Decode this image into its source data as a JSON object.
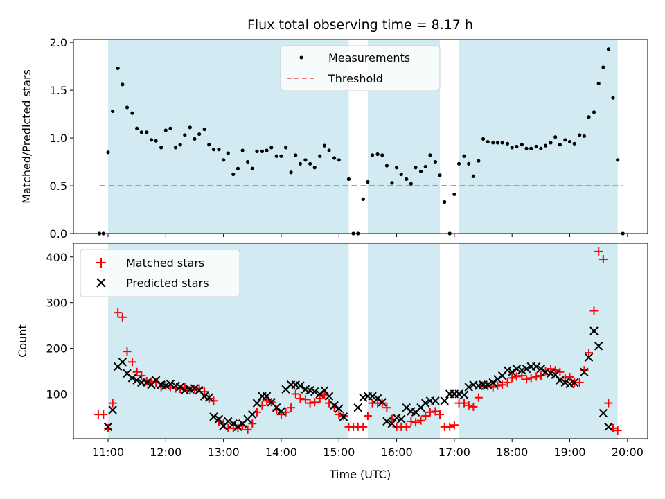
{
  "chart_data": {
    "type": "scatter",
    "title": "Flux total observing time = 8.17 h",
    "xlabel": "Time (UTC)",
    "x_ticks": [
      "11:00",
      "12:00",
      "13:00",
      "14:00",
      "15:00",
      "16:00",
      "17:00",
      "18:00",
      "19:00",
      "20:00"
    ],
    "xlim_hours": [
      10.4,
      20.35
    ],
    "shaded_intervals_hours": [
      [
        11.0,
        15.17
      ],
      [
        15.5,
        16.75
      ],
      [
        17.08,
        19.83
      ]
    ],
    "colors": {
      "shade": "#add8e6",
      "measure": "#000000",
      "threshold": "#f08080",
      "matched": "#ff0000",
      "predicted": "#000000"
    },
    "top": {
      "ylabel": "Matched/Predicted stars",
      "ylim": [
        0,
        2.03
      ],
      "yticks": [
        "0.0",
        "0.5",
        "1.0",
        "1.5",
        "2.0"
      ],
      "legend": [
        "Measurements",
        "Threshold"
      ],
      "threshold": {
        "value": 0.5,
        "x_range": [
          10.85,
          19.92
        ]
      },
      "measurements": [
        [
          10.85,
          0
        ],
        [
          10.92,
          0
        ],
        [
          11.0,
          0.85
        ],
        [
          11.08,
          1.28
        ],
        [
          11.17,
          1.73
        ],
        [
          11.25,
          1.56
        ],
        [
          11.33,
          1.32
        ],
        [
          11.42,
          1.26
        ],
        [
          11.5,
          1.1
        ],
        [
          11.58,
          1.06
        ],
        [
          11.67,
          1.06
        ],
        [
          11.75,
          0.98
        ],
        [
          11.83,
          0.97
        ],
        [
          11.92,
          0.9
        ],
        [
          12.0,
          1.08
        ],
        [
          12.08,
          1.1
        ],
        [
          12.17,
          0.9
        ],
        [
          12.25,
          0.93
        ],
        [
          12.33,
          1.03
        ],
        [
          12.42,
          1.11
        ],
        [
          12.5,
          0.99
        ],
        [
          12.58,
          1.04
        ],
        [
          12.67,
          1.09
        ],
        [
          12.75,
          0.93
        ],
        [
          12.83,
          0.88
        ],
        [
          12.92,
          0.88
        ],
        [
          13.0,
          0.77
        ],
        [
          13.08,
          0.84
        ],
        [
          13.17,
          0.62
        ],
        [
          13.25,
          0.68
        ],
        [
          13.33,
          0.87
        ],
        [
          13.42,
          0.75
        ],
        [
          13.5,
          0.68
        ],
        [
          13.58,
          0.86
        ],
        [
          13.67,
          0.86
        ],
        [
          13.75,
          0.87
        ],
        [
          13.83,
          0.9
        ],
        [
          13.92,
          0.81
        ],
        [
          14.0,
          0.81
        ],
        [
          14.08,
          0.9
        ],
        [
          14.17,
          0.64
        ],
        [
          14.25,
          0.82
        ],
        [
          14.33,
          0.73
        ],
        [
          14.42,
          0.77
        ],
        [
          14.5,
          0.73
        ],
        [
          14.58,
          0.69
        ],
        [
          14.67,
          0.81
        ],
        [
          14.75,
          0.92
        ],
        [
          14.83,
          0.87
        ],
        [
          14.92,
          0.79
        ],
        [
          15.0,
          0.77
        ],
        [
          15.17,
          0.57
        ],
        [
          15.25,
          0
        ],
        [
          15.33,
          0
        ],
        [
          15.42,
          0.36
        ],
        [
          15.5,
          0.54
        ],
        [
          15.58,
          0.82
        ],
        [
          15.67,
          0.83
        ],
        [
          15.75,
          0.82
        ],
        [
          15.83,
          0.71
        ],
        [
          15.92,
          0.53
        ],
        [
          16.0,
          0.69
        ],
        [
          16.08,
          0.62
        ],
        [
          16.17,
          0.57
        ],
        [
          16.25,
          0.52
        ],
        [
          16.33,
          0.69
        ],
        [
          16.42,
          0.65
        ],
        [
          16.5,
          0.7
        ],
        [
          16.58,
          0.82
        ],
        [
          16.67,
          0.75
        ],
        [
          16.75,
          0.61
        ],
        [
          16.83,
          0.33
        ],
        [
          16.92,
          0
        ],
        [
          17.0,
          0.41
        ],
        [
          17.08,
          0.73
        ],
        [
          17.17,
          0.81
        ],
        [
          17.25,
          0.73
        ],
        [
          17.33,
          0.6
        ],
        [
          17.42,
          0.76
        ],
        [
          17.5,
          0.99
        ],
        [
          17.58,
          0.96
        ],
        [
          17.67,
          0.95
        ],
        [
          17.75,
          0.95
        ],
        [
          17.83,
          0.95
        ],
        [
          17.92,
          0.94
        ],
        [
          18.0,
          0.9
        ],
        [
          18.08,
          0.91
        ],
        [
          18.17,
          0.93
        ],
        [
          18.25,
          0.89
        ],
        [
          18.33,
          0.89
        ],
        [
          18.42,
          0.91
        ],
        [
          18.5,
          0.89
        ],
        [
          18.58,
          0.92
        ],
        [
          18.67,
          0.95
        ],
        [
          18.75,
          1.01
        ],
        [
          18.83,
          0.93
        ],
        [
          18.92,
          0.98
        ],
        [
          19.0,
          0.96
        ],
        [
          19.08,
          0.94
        ],
        [
          19.17,
          1.03
        ],
        [
          19.25,
          1.02
        ],
        [
          19.33,
          1.22
        ],
        [
          19.42,
          1.27
        ],
        [
          19.5,
          1.57
        ],
        [
          19.58,
          1.74
        ],
        [
          19.67,
          1.93
        ],
        [
          19.75,
          1.42
        ],
        [
          19.83,
          0.77
        ],
        [
          19.92,
          0
        ]
      ]
    },
    "bottom": {
      "ylabel": "Count",
      "ylim": [
        2,
        430
      ],
      "yticks": [
        "100",
        "200",
        "300",
        "400"
      ],
      "legend": [
        "Matched stars",
        "Predicted stars"
      ],
      "matched": [
        [
          10.83,
          55
        ],
        [
          10.92,
          55
        ],
        [
          11.0,
          25
        ],
        [
          11.08,
          80
        ],
        [
          11.17,
          278
        ],
        [
          11.25,
          268
        ],
        [
          11.33,
          193
        ],
        [
          11.42,
          170
        ],
        [
          11.5,
          148
        ],
        [
          11.58,
          140
        ],
        [
          11.67,
          128
        ],
        [
          11.75,
          127
        ],
        [
          11.83,
          125
        ],
        [
          11.92,
          115
        ],
        [
          12.0,
          118
        ],
        [
          12.08,
          115
        ],
        [
          12.17,
          112
        ],
        [
          12.25,
          111
        ],
        [
          12.33,
          115
        ],
        [
          12.42,
          108
        ],
        [
          12.5,
          110
        ],
        [
          12.58,
          112
        ],
        [
          12.67,
          105
        ],
        [
          12.75,
          90
        ],
        [
          12.83,
          85
        ],
        [
          12.92,
          40
        ],
        [
          13.0,
          35
        ],
        [
          13.08,
          25
        ],
        [
          13.17,
          25
        ],
        [
          13.25,
          25
        ],
        [
          13.33,
          30
        ],
        [
          13.42,
          22
        ],
        [
          13.5,
          35
        ],
        [
          13.58,
          60
        ],
        [
          13.67,
          75
        ],
        [
          13.75,
          85
        ],
        [
          13.83,
          82
        ],
        [
          13.92,
          65
        ],
        [
          14.0,
          55
        ],
        [
          14.08,
          60
        ],
        [
          14.17,
          70
        ],
        [
          14.25,
          100
        ],
        [
          14.33,
          90
        ],
        [
          14.42,
          88
        ],
        [
          14.5,
          80
        ],
        [
          14.58,
          82
        ],
        [
          14.67,
          90
        ],
        [
          14.75,
          98
        ],
        [
          14.83,
          80
        ],
        [
          14.92,
          70
        ],
        [
          15.0,
          55
        ],
        [
          15.08,
          52
        ],
        [
          15.17,
          28
        ],
        [
          15.25,
          28
        ],
        [
          15.33,
          28
        ],
        [
          15.42,
          28
        ],
        [
          15.5,
          52
        ],
        [
          15.58,
          80
        ],
        [
          15.67,
          80
        ],
        [
          15.75,
          80
        ],
        [
          15.83,
          70
        ],
        [
          15.92,
          45
        ],
        [
          16.0,
          28
        ],
        [
          16.08,
          28
        ],
        [
          16.17,
          28
        ],
        [
          16.25,
          40
        ],
        [
          16.33,
          38
        ],
        [
          16.42,
          42
        ],
        [
          16.5,
          52
        ],
        [
          16.58,
          60
        ],
        [
          16.67,
          62
        ],
        [
          16.75,
          55
        ],
        [
          16.83,
          28
        ],
        [
          16.92,
          28
        ],
        [
          17.0,
          32
        ],
        [
          17.08,
          80
        ],
        [
          17.17,
          80
        ],
        [
          17.25,
          75
        ],
        [
          17.33,
          72
        ],
        [
          17.42,
          92
        ],
        [
          17.5,
          118
        ],
        [
          17.58,
          117
        ],
        [
          17.67,
          115
        ],
        [
          17.75,
          118
        ],
        [
          17.83,
          120
        ],
        [
          17.92,
          125
        ],
        [
          18.0,
          135
        ],
        [
          18.08,
          138
        ],
        [
          18.17,
          140
        ],
        [
          18.25,
          132
        ],
        [
          18.33,
          135
        ],
        [
          18.42,
          138
        ],
        [
          18.5,
          140
        ],
        [
          18.58,
          150
        ],
        [
          18.67,
          155
        ],
        [
          18.75,
          152
        ],
        [
          18.83,
          148
        ],
        [
          18.92,
          135
        ],
        [
          19.0,
          137
        ],
        [
          19.08,
          125
        ],
        [
          19.17,
          125
        ],
        [
          19.25,
          152
        ],
        [
          19.33,
          190
        ],
        [
          19.42,
          282
        ],
        [
          19.5,
          412
        ],
        [
          19.58,
          395
        ],
        [
          19.67,
          80
        ],
        [
          19.75,
          25
        ],
        [
          19.83,
          20
        ]
      ],
      "predicted": [
        [
          11.0,
          28
        ],
        [
          11.08,
          65
        ],
        [
          11.17,
          160
        ],
        [
          11.25,
          170
        ],
        [
          11.33,
          145
        ],
        [
          11.42,
          135
        ],
        [
          11.5,
          130
        ],
        [
          11.58,
          125
        ],
        [
          11.67,
          125
        ],
        [
          11.75,
          120
        ],
        [
          11.83,
          130
        ],
        [
          11.92,
          120
        ],
        [
          12.0,
          118
        ],
        [
          12.08,
          122
        ],
        [
          12.17,
          118
        ],
        [
          12.25,
          115
        ],
        [
          12.33,
          108
        ],
        [
          12.42,
          110
        ],
        [
          12.5,
          112
        ],
        [
          12.58,
          108
        ],
        [
          12.67,
          95
        ],
        [
          12.75,
          92
        ],
        [
          12.83,
          50
        ],
        [
          12.92,
          45
        ],
        [
          13.0,
          30
        ],
        [
          13.08,
          40
        ],
        [
          13.17,
          35
        ],
        [
          13.25,
          28
        ],
        [
          13.33,
          35
        ],
        [
          13.42,
          45
        ],
        [
          13.5,
          55
        ],
        [
          13.58,
          80
        ],
        [
          13.67,
          95
        ],
        [
          13.75,
          95
        ],
        [
          13.83,
          82
        ],
        [
          13.92,
          70
        ],
        [
          14.0,
          62
        ],
        [
          14.08,
          110
        ],
        [
          14.17,
          120
        ],
        [
          14.25,
          120
        ],
        [
          14.33,
          118
        ],
        [
          14.42,
          110
        ],
        [
          14.5,
          108
        ],
        [
          14.58,
          105
        ],
        [
          14.67,
          100
        ],
        [
          14.75,
          108
        ],
        [
          14.83,
          95
        ],
        [
          14.92,
          75
        ],
        [
          15.0,
          68
        ],
        [
          15.08,
          50
        ],
        [
          15.33,
          70
        ],
        [
          15.42,
          92
        ],
        [
          15.5,
          95
        ],
        [
          15.58,
          95
        ],
        [
          15.67,
          90
        ],
        [
          15.75,
          82
        ],
        [
          15.83,
          40
        ],
        [
          15.92,
          35
        ],
        [
          16.0,
          48
        ],
        [
          16.08,
          45
        ],
        [
          16.17,
          70
        ],
        [
          16.25,
          62
        ],
        [
          16.33,
          60
        ],
        [
          16.42,
          70
        ],
        [
          16.5,
          80
        ],
        [
          16.58,
          85
        ],
        [
          16.67,
          85
        ],
        [
          16.83,
          85
        ],
        [
          16.92,
          100
        ],
        [
          17.0,
          100
        ],
        [
          17.08,
          100
        ],
        [
          17.17,
          98
        ],
        [
          17.25,
          115
        ],
        [
          17.33,
          120
        ],
        [
          17.42,
          118
        ],
        [
          17.5,
          120
        ],
        [
          17.58,
          120
        ],
        [
          17.67,
          125
        ],
        [
          17.75,
          132
        ],
        [
          17.83,
          140
        ],
        [
          17.92,
          152
        ],
        [
          18.0,
          148
        ],
        [
          18.08,
          155
        ],
        [
          18.17,
          152
        ],
        [
          18.25,
          155
        ],
        [
          18.33,
          160
        ],
        [
          18.42,
          160
        ],
        [
          18.5,
          155
        ],
        [
          18.58,
          148
        ],
        [
          18.67,
          145
        ],
        [
          18.75,
          142
        ],
        [
          18.83,
          130
        ],
        [
          18.92,
          125
        ],
        [
          19.0,
          122
        ],
        [
          19.08,
          125
        ],
        [
          19.25,
          148
        ],
        [
          19.33,
          180
        ],
        [
          19.42,
          238
        ],
        [
          19.5,
          205
        ],
        [
          19.58,
          58
        ],
        [
          19.67,
          28
        ]
      ]
    }
  }
}
